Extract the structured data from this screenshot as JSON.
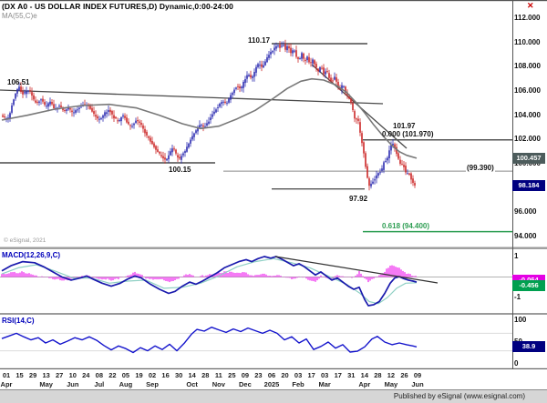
{
  "header": {
    "title": "(DX A0 - US DOLLAR INDEX FUTURES,D) Dynamic,0:00-24:00",
    "ma_label": "MA(55,C)e",
    "close_icon": "✕"
  },
  "watermark": "© eSignal, 2021",
  "footer": {
    "publisher": "Published by eSignal (www.esignal.com)"
  },
  "colors": {
    "up": "#2a2ab0",
    "down": "#cc2626",
    "ma": "#787878",
    "macd": "#1a1aad",
    "signal": "#8fd0c4",
    "hist": "#ee22ee",
    "rsi": "#1414cc",
    "fib": "#2e9e53",
    "line": "#4a4a4a",
    "tag_navy": "#000080",
    "tag_gray": "#4d5c5c",
    "tag_magenta": "#e400e4",
    "tag_green": "#00a050"
  },
  "main_pane": {
    "ticks": [
      {
        "label": "112.000",
        "value": 112
      },
      {
        "label": "110.000",
        "value": 110
      },
      {
        "label": "108.000",
        "value": 108
      },
      {
        "label": "106.000",
        "value": 106
      },
      {
        "label": "104.000",
        "value": 104
      },
      {
        "label": "102.000",
        "value": 102
      },
      {
        "label": "100.000",
        "value": 100
      },
      {
        "label": "96.000",
        "value": 96
      },
      {
        "label": "94.000",
        "value": 94
      }
    ],
    "tags": [
      {
        "text": "100.457",
        "value": 100.457,
        "bg_key": "tag_gray"
      },
      {
        "text": "98.184",
        "value": 98.184,
        "bg_key": "tag_navy"
      }
    ],
    "annotations": {
      "high_2024": "106.51",
      "high_2025": "110.17",
      "low_2024": "100.15",
      "fib_base": "101.97",
      "fib_zero": "0.000 (101.970)",
      "ma_level": "(99.390)",
      "low_apr": "97.92",
      "fib_618": "0.618 (94.400)"
    }
  },
  "macd_pane": {
    "label": "MACD(12,26,9,C)",
    "ticks": [
      {
        "label": "1",
        "value": 1
      },
      {
        "label": "-1",
        "value": -1
      }
    ],
    "tags": [
      {
        "text": "-0.064",
        "value": -0.064,
        "bg_key": "tag_magenta"
      },
      {
        "text": "-0.456",
        "value": -0.456,
        "bg_key": "tag_green"
      }
    ]
  },
  "rsi_pane": {
    "label": "RSI(14,C)",
    "ticks": [
      {
        "label": "100",
        "value": 100
      },
      {
        "label": "50",
        "value": 50
      },
      {
        "label": "0",
        "value": 0
      }
    ],
    "tag": {
      "text": "38.9",
      "value": 38.9,
      "bg_key": "tag_navy"
    },
    "gridlines": [
      70,
      30
    ]
  },
  "x_axis": {
    "days": [
      "01",
      "15",
      "29",
      "13",
      "27",
      "10",
      "24",
      "08",
      "22",
      "05",
      "19",
      "02",
      "16",
      "30",
      "14",
      "28",
      "11",
      "25",
      "09",
      "23",
      "06",
      "20",
      "03",
      "17",
      "03",
      "17",
      "31",
      "14",
      "28",
      "12",
      "26",
      "09"
    ],
    "months": [
      {
        "label": "Apr",
        "i": 0
      },
      {
        "label": "May",
        "i": 3
      },
      {
        "label": "Jun",
        "i": 5
      },
      {
        "label": "Jul",
        "i": 7
      },
      {
        "label": "Aug",
        "i": 9
      },
      {
        "label": "Sep",
        "i": 11
      },
      {
        "label": "Oct",
        "i": 14
      },
      {
        "label": "Nov",
        "i": 16
      },
      {
        "label": "Dec",
        "i": 18
      },
      {
        "label": "2025",
        "i": 20
      },
      {
        "label": "Feb",
        "i": 22
      },
      {
        "label": "Mar",
        "i": 24
      },
      {
        "label": "Apr",
        "i": 27
      },
      {
        "label": "May",
        "i": 29
      },
      {
        "label": "Jun",
        "i": 31
      }
    ]
  },
  "chart_data": {
    "type": "candlestick",
    "title": "DX A0 - US Dollar Index Futures, Daily, 0:00-24:00",
    "x_range": "Apr 2024 - Jun 2025",
    "ylim_main": [
      93.5,
      113.5
    ],
    "ylim_macd": [
      -1.5,
      1.5
    ],
    "ylim_rsi": [
      0,
      100
    ],
    "levels": {
      "high_2025": 110.17,
      "high_2024": 106.51,
      "low_2024": 100.15,
      "fib_zero": 101.97,
      "ma_current": 100.457,
      "last_price": 98.184,
      "low_apr_2025": 97.92,
      "fib_618": 94.4,
      "ma_level": 99.39,
      "macd_tag_1": -0.064,
      "macd_tag_2": -0.456,
      "rsi_current": 38.9
    },
    "close_path": [
      [
        2,
        104.0
      ],
      [
        6,
        103.7
      ],
      [
        10,
        103.9
      ],
      [
        14,
        105.1
      ],
      [
        18,
        106.0
      ],
      [
        21,
        106.3
      ],
      [
        24,
        105.7
      ],
      [
        28,
        105.9
      ],
      [
        32,
        106.1
      ],
      [
        36,
        105.4
      ],
      [
        40,
        105.0
      ],
      [
        45,
        105.3
      ],
      [
        50,
        104.7
      ],
      [
        55,
        105.1
      ],
      [
        60,
        104.5
      ],
      [
        65,
        104.8
      ],
      [
        70,
        104.3
      ],
      [
        75,
        104.6
      ],
      [
        80,
        104.2
      ],
      [
        85,
        104.5
      ],
      [
        90,
        104.8
      ],
      [
        95,
        104.9
      ],
      [
        100,
        104.4
      ],
      [
        105,
        103.9
      ],
      [
        110,
        103.6
      ],
      [
        115,
        104.2
      ],
      [
        120,
        104.4
      ],
      [
        125,
        103.8
      ],
      [
        130,
        103.5
      ],
      [
        135,
        104.0
      ],
      [
        140,
        103.3
      ],
      [
        145,
        103.1
      ],
      [
        150,
        103.6
      ],
      [
        155,
        103.2
      ],
      [
        158,
        102.7
      ],
      [
        162,
        102.2
      ],
      [
        166,
        101.7
      ],
      [
        170,
        101.3
      ],
      [
        174,
        100.9
      ],
      [
        178,
        100.5
      ],
      [
        182,
        100.3
      ],
      [
        186,
        100.9
      ],
      [
        190,
        101.3
      ],
      [
        193,
        100.8
      ],
      [
        196,
        100.3
      ],
      [
        200,
        100.7
      ],
      [
        204,
        101.2
      ],
      [
        208,
        101.8
      ],
      [
        212,
        102.4
      ],
      [
        216,
        102.8
      ],
      [
        220,
        103.3
      ],
      [
        224,
        103.0
      ],
      [
        228,
        103.4
      ],
      [
        232,
        103.9
      ],
      [
        236,
        104.4
      ],
      [
        240,
        104.8
      ],
      [
        244,
        105.2
      ],
      [
        248,
        104.9
      ],
      [
        252,
        105.5
      ],
      [
        256,
        106.0
      ],
      [
        260,
        106.4
      ],
      [
        264,
        106.1
      ],
      [
        268,
        106.9
      ],
      [
        272,
        107.4
      ],
      [
        276,
        107.0
      ],
      [
        280,
        107.8
      ],
      [
        284,
        108.3
      ],
      [
        288,
        107.9
      ],
      [
        292,
        108.6
      ],
      [
        296,
        109.1
      ],
      [
        300,
        109.4
      ],
      [
        304,
        109.8
      ],
      [
        308,
        109.5
      ],
      [
        310,
        110.0
      ],
      [
        313,
        109.4
      ],
      [
        316,
        109.8
      ],
      [
        319,
        109.1
      ],
      [
        322,
        109.5
      ],
      [
        325,
        108.8
      ],
      [
        328,
        108.5
      ],
      [
        331,
        109.1
      ],
      [
        334,
        108.4
      ],
      [
        337,
        108.8
      ],
      [
        340,
        108.2
      ],
      [
        343,
        108.6
      ],
      [
        346,
        108.0
      ],
      [
        349,
        107.6
      ],
      [
        352,
        108.1
      ],
      [
        355,
        107.4
      ],
      [
        358,
        107.8
      ],
      [
        361,
        107.1
      ],
      [
        364,
        106.7
      ],
      [
        367,
        107.2
      ],
      [
        370,
        106.5
      ],
      [
        373,
        106.1
      ],
      [
        376,
        106.6
      ],
      [
        379,
        105.9
      ],
      [
        382,
        105.5
      ],
      [
        385,
        105.0
      ],
      [
        388,
        104.1
      ],
      [
        390,
        103.4
      ],
      [
        392,
        103.9
      ],
      [
        394,
        103.1
      ],
      [
        396,
        102.1
      ],
      [
        398,
        101.3
      ],
      [
        400,
        100.3
      ],
      [
        402,
        99.2
      ],
      [
        404,
        98.4
      ],
      [
        406,
        97.95
      ],
      [
        408,
        98.7
      ],
      [
        410,
        98.4
      ],
      [
        412,
        99.1
      ],
      [
        414,
        98.9
      ],
      [
        416,
        99.5
      ],
      [
        418,
        99.2
      ],
      [
        420,
        99.9
      ],
      [
        422,
        100.4
      ],
      [
        424,
        100.1
      ],
      [
        426,
        100.8
      ],
      [
        428,
        101.3
      ],
      [
        430,
        101.8
      ],
      [
        432,
        101.5
      ],
      [
        434,
        101.1
      ],
      [
        436,
        100.6
      ],
      [
        438,
        100.2
      ],
      [
        440,
        99.8
      ],
      [
        442,
        100.0
      ],
      [
        444,
        99.5
      ],
      [
        446,
        99.1
      ],
      [
        448,
        99.4
      ],
      [
        450,
        98.9
      ],
      [
        452,
        98.6
      ],
      [
        454,
        98.3
      ],
      [
        456,
        98.18
      ]
    ],
    "ma_path": [
      [
        2,
        103.6
      ],
      [
        30,
        104.0
      ],
      [
        60,
        104.5
      ],
      [
        90,
        104.8
      ],
      [
        120,
        104.9
      ],
      [
        150,
        104.6
      ],
      [
        175,
        104.0
      ],
      [
        200,
        103.3
      ],
      [
        220,
        102.9
      ],
      [
        240,
        103.1
      ],
      [
        260,
        103.7
      ],
      [
        280,
        104.4
      ],
      [
        300,
        105.4
      ],
      [
        315,
        106.2
      ],
      [
        330,
        106.8
      ],
      [
        342,
        107.0
      ],
      [
        355,
        106.9
      ],
      [
        368,
        106.5
      ],
      [
        380,
        105.9
      ],
      [
        390,
        105.1
      ],
      [
        400,
        104.2
      ],
      [
        410,
        103.2
      ],
      [
        420,
        102.3
      ],
      [
        430,
        101.5
      ],
      [
        438,
        101.0
      ],
      [
        446,
        100.7
      ],
      [
        457,
        100.46
      ]
    ],
    "macd_path": [
      [
        2,
        0.3
      ],
      [
        12,
        0.55
      ],
      [
        25,
        0.75
      ],
      [
        38,
        0.7
      ],
      [
        48,
        0.5
      ],
      [
        58,
        0.25
      ],
      [
        68,
        0.0
      ],
      [
        78,
        -0.15
      ],
      [
        88,
        -0.05
      ],
      [
        95,
        0.05
      ],
      [
        102,
        -0.1
      ],
      [
        112,
        -0.3
      ],
      [
        122,
        -0.45
      ],
      [
        132,
        -0.3
      ],
      [
        140,
        -0.1
      ],
      [
        148,
        0.05
      ],
      [
        155,
        -0.05
      ],
      [
        165,
        -0.35
      ],
      [
        175,
        -0.6
      ],
      [
        185,
        -0.8
      ],
      [
        192,
        -0.7
      ],
      [
        200,
        -0.45
      ],
      [
        208,
        -0.25
      ],
      [
        215,
        -0.35
      ],
      [
        222,
        -0.2
      ],
      [
        230,
        0.0
      ],
      [
        238,
        0.2
      ],
      [
        246,
        0.45
      ],
      [
        254,
        0.6
      ],
      [
        262,
        0.75
      ],
      [
        270,
        0.85
      ],
      [
        276,
        0.75
      ],
      [
        283,
        0.9
      ],
      [
        290,
        1.0
      ],
      [
        297,
        0.92
      ],
      [
        303,
        1.0
      ],
      [
        310,
        0.85
      ],
      [
        316,
        0.7
      ],
      [
        322,
        0.55
      ],
      [
        328,
        0.65
      ],
      [
        334,
        0.5
      ],
      [
        340,
        0.3
      ],
      [
        346,
        0.1
      ],
      [
        352,
        0.25
      ],
      [
        358,
        0.05
      ],
      [
        364,
        -0.15
      ],
      [
        370,
        -0.05
      ],
      [
        376,
        -0.25
      ],
      [
        382,
        -0.45
      ],
      [
        388,
        -0.6
      ],
      [
        394,
        -0.5
      ],
      [
        400,
        -1.1
      ],
      [
        404,
        -1.4
      ],
      [
        410,
        -1.35
      ],
      [
        416,
        -1.2
      ],
      [
        422,
        -0.8
      ],
      [
        428,
        -0.3
      ],
      [
        433,
        -0.05
      ],
      [
        438,
        0.02
      ],
      [
        443,
        -0.08
      ],
      [
        448,
        -0.15
      ],
      [
        453,
        -0.2
      ],
      [
        457,
        -0.25
      ]
    ],
    "signal_path": [
      [
        2,
        0.15
      ],
      [
        20,
        0.45
      ],
      [
        40,
        0.6
      ],
      [
        60,
        0.3
      ],
      [
        80,
        -0.05
      ],
      [
        100,
        -0.05
      ],
      [
        120,
        -0.3
      ],
      [
        140,
        -0.2
      ],
      [
        160,
        -0.15
      ],
      [
        180,
        -0.55
      ],
      [
        200,
        -0.5
      ],
      [
        220,
        -0.3
      ],
      [
        240,
        0.05
      ],
      [
        260,
        0.5
      ],
      [
        280,
        0.75
      ],
      [
        300,
        0.9
      ],
      [
        320,
        0.7
      ],
      [
        340,
        0.45
      ],
      [
        360,
        0.05
      ],
      [
        380,
        -0.35
      ],
      [
        395,
        -0.8
      ],
      [
        405,
        -1.2
      ],
      [
        415,
        -1.3
      ],
      [
        425,
        -1.0
      ],
      [
        435,
        -0.55
      ],
      [
        445,
        -0.3
      ],
      [
        457,
        -0.28
      ]
    ],
    "rsi_path": [
      [
        2,
        58
      ],
      [
        10,
        64
      ],
      [
        18,
        70
      ],
      [
        26,
        62
      ],
      [
        34,
        55
      ],
      [
        42,
        60
      ],
      [
        50,
        48
      ],
      [
        58,
        55
      ],
      [
        66,
        45
      ],
      [
        74,
        52
      ],
      [
        82,
        60
      ],
      [
        90,
        55
      ],
      [
        98,
        62
      ],
      [
        106,
        54
      ],
      [
        114,
        42
      ],
      [
        122,
        32
      ],
      [
        130,
        41
      ],
      [
        138,
        35
      ],
      [
        146,
        26
      ],
      [
        154,
        37
      ],
      [
        162,
        30
      ],
      [
        170,
        41
      ],
      [
        178,
        33
      ],
      [
        186,
        45
      ],
      [
        194,
        30
      ],
      [
        202,
        47
      ],
      [
        210,
        68
      ],
      [
        216,
        79
      ],
      [
        224,
        75
      ],
      [
        232,
        84
      ],
      [
        240,
        78
      ],
      [
        248,
        72
      ],
      [
        256,
        80
      ],
      [
        264,
        74
      ],
      [
        272,
        82
      ],
      [
        280,
        76
      ],
      [
        288,
        70
      ],
      [
        296,
        77
      ],
      [
        304,
        70
      ],
      [
        312,
        55
      ],
      [
        320,
        62
      ],
      [
        328,
        48
      ],
      [
        336,
        57
      ],
      [
        344,
        33
      ],
      [
        352,
        40
      ],
      [
        360,
        50
      ],
      [
        368,
        36
      ],
      [
        376,
        44
      ],
      [
        384,
        27
      ],
      [
        392,
        29
      ],
      [
        400,
        39
      ],
      [
        408,
        57
      ],
      [
        414,
        63
      ],
      [
        422,
        50
      ],
      [
        430,
        44
      ],
      [
        438,
        48
      ],
      [
        446,
        44
      ],
      [
        453,
        41
      ],
      [
        457,
        38.9
      ]
    ]
  }
}
